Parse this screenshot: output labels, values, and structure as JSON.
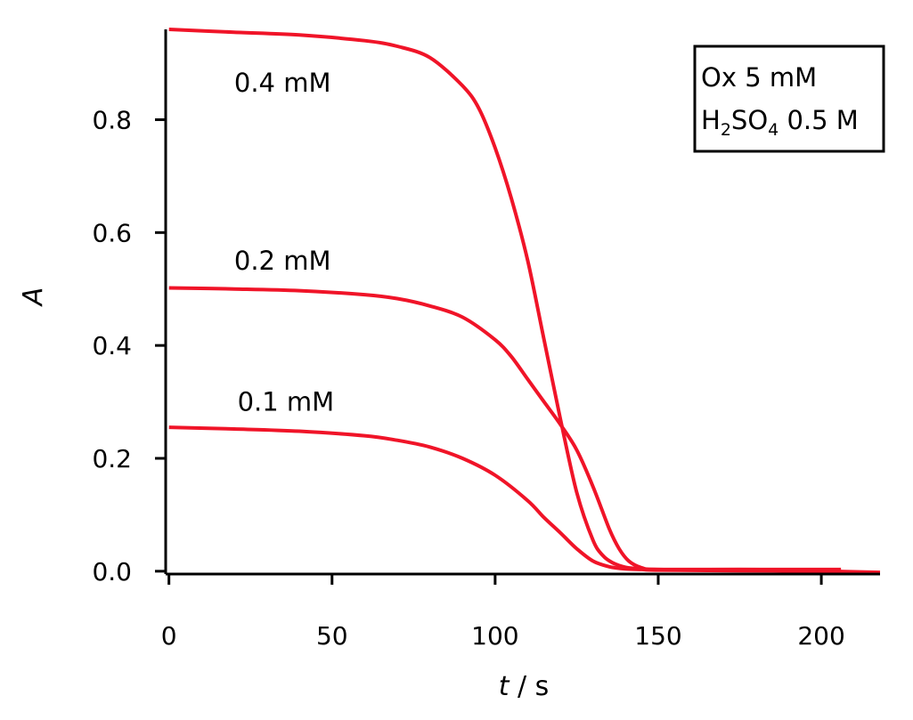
{
  "chart_data": {
    "type": "line",
    "title": "",
    "xlabel": {
      "var": "t",
      "unit": " / s"
    },
    "ylabel": "A",
    "xlim": [
      -1,
      218
    ],
    "ylim": [
      -0.005,
      0.96
    ],
    "x_ticks": [
      0,
      50,
      100,
      150,
      200
    ],
    "x_tick_labels": [
      "0",
      "50",
      "100",
      "150",
      "200"
    ],
    "y_ticks": [
      0.0,
      0.2,
      0.4,
      0.6,
      0.8
    ],
    "y_tick_labels": [
      "0.0",
      "0.2",
      "0.4",
      "0.6",
      "0.8"
    ],
    "grid": false,
    "line_color": "#f01428",
    "legend_box": {
      "placement": "top-right",
      "line1": "Ox 5 mM",
      "line2": {
        "h": "H",
        "sub1": "2",
        "mid": "SO",
        "sub2": "4",
        "rest": " 0.5 M"
      }
    },
    "series": [
      {
        "label": "0.4 mM",
        "label_at": [
          20,
          0.865
        ],
        "x": [
          0,
          20,
          40,
          60,
          70,
          80,
          90,
          95,
          100,
          105,
          110,
          115,
          120,
          125,
          130,
          133,
          136,
          140,
          145,
          150,
          175,
          206
        ],
        "y": [
          0.96,
          0.955,
          0.95,
          0.94,
          0.93,
          0.91,
          0.86,
          0.82,
          0.75,
          0.66,
          0.55,
          0.41,
          0.27,
          0.14,
          0.055,
          0.028,
          0.015,
          0.007,
          0.004,
          0.003,
          0.003,
          0.002
        ]
      },
      {
        "label": "0.2 mM",
        "label_at": [
          20,
          0.55
        ],
        "x": [
          0,
          20,
          40,
          60,
          70,
          80,
          90,
          100,
          105,
          110,
          115,
          120,
          125,
          130,
          135,
          138,
          141,
          145,
          150,
          175,
          206
        ],
        "y": [
          0.502,
          0.5,
          0.497,
          0.49,
          0.483,
          0.47,
          0.45,
          0.41,
          0.38,
          0.34,
          0.3,
          0.26,
          0.215,
          0.15,
          0.075,
          0.04,
          0.018,
          0.006,
          0.003,
          0.003,
          0.003
        ]
      },
      {
        "label": "0.1 mM",
        "label_at": [
          21,
          0.3
        ],
        "x": [
          0,
          20,
          40,
          60,
          70,
          80,
          90,
          100,
          110,
          115,
          120,
          125,
          130,
          135,
          140,
          145,
          150,
          175,
          200,
          218
        ],
        "y": [
          0.255,
          0.252,
          0.248,
          0.24,
          0.232,
          0.22,
          0.2,
          0.17,
          0.125,
          0.095,
          0.068,
          0.04,
          0.018,
          0.008,
          0.004,
          0.003,
          0.002,
          0.001,
          0.0,
          -0.002
        ]
      }
    ]
  }
}
